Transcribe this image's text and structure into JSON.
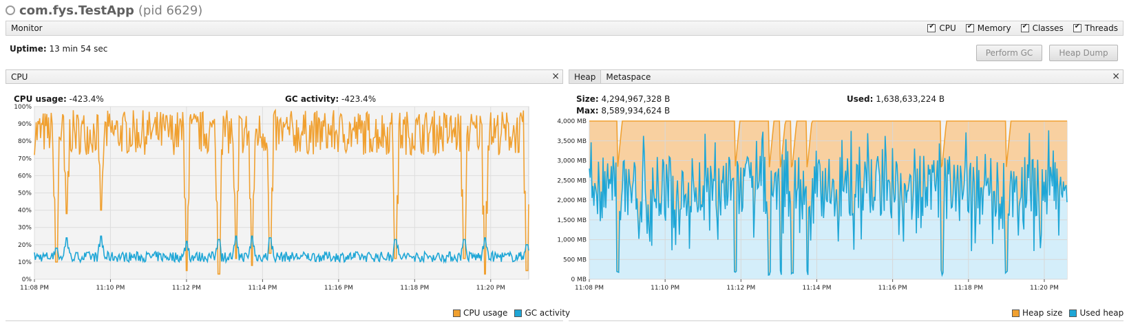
{
  "app": {
    "name": "com.fys.TestApp",
    "pid": "(pid 6629)"
  },
  "monitor": {
    "label": "Monitor",
    "checkboxes": [
      {
        "label": "CPU",
        "checked": true
      },
      {
        "label": "Memory",
        "checked": true
      },
      {
        "label": "Classes",
        "checked": true
      },
      {
        "label": "Threads",
        "checked": true
      }
    ]
  },
  "uptime": {
    "label": "Uptime:",
    "value": "13 min 54 sec"
  },
  "buttons": {
    "perform_gc": "Perform GC",
    "heap_dump": "Heap Dump"
  },
  "cpu_panel": {
    "tab": "CPU",
    "close": "×",
    "cpu_usage_label": "CPU usage:",
    "cpu_usage_value": "-423.4%",
    "gc_activity_label": "GC activity:",
    "gc_activity_value": "-423.4%"
  },
  "memory_panel": {
    "tabs": [
      "Heap",
      "Metaspace"
    ],
    "close": "×",
    "size_label": "Size:",
    "size_value": "4,294,967,328 B",
    "used_label": "Used:",
    "used_value": "1,638,633,224 B",
    "max_label": "Max:",
    "max_value": "8,589,934,624 B"
  },
  "colors": {
    "orange": "#f0a030",
    "blue": "#1ea6d6",
    "orange_fill": "#f8d0a0",
    "blue_fill": "#d4eefa"
  },
  "chart_data": [
    {
      "type": "line",
      "yticks": [
        "0%",
        "10%",
        "20%",
        "30%",
        "40%",
        "50%",
        "60%",
        "70%",
        "80%",
        "90%",
        "100%"
      ],
      "ylim": [
        0,
        100
      ],
      "xticks": [
        "11:08 PM",
        "11:10 PM",
        "11:12 PM",
        "11:14 PM",
        "11:16 PM",
        "11:18 PM",
        "11:20 PM"
      ],
      "xlim": [
        0,
        13.0
      ],
      "xtick_positions": [
        0,
        2,
        4,
        6,
        8,
        10,
        12
      ],
      "grid": true,
      "legend": "bottom-right",
      "series": [
        {
          "name": "CPU usage",
          "color": "#f0a030"
        },
        {
          "name": "GC activity",
          "color": "#1ea6d6"
        }
      ],
      "approx_pattern": {
        "cpu_usage_range": [
          72,
          98
        ],
        "gc_activity_range": [
          10,
          16
        ],
        "drop_times": [
          0.58,
          0.85,
          1.75,
          4.0,
          4.85,
          5.3,
          5.72,
          6.2,
          9.5,
          11.3,
          11.85,
          12.95
        ],
        "drop_cpu_min": [
          10,
          38,
          40,
          5,
          3,
          12,
          8,
          15,
          12,
          12,
          3,
          5
        ],
        "gc_spike_max": [
          18,
          24,
          25,
          22,
          23,
          25,
          25,
          24,
          23,
          23,
          24,
          20
        ]
      }
    },
    {
      "type": "area",
      "yticks": [
        "0 MB",
        "500 MB",
        "1,000 MB",
        "1,500 MB",
        "2,000 MB",
        "2,500 MB",
        "3,000 MB",
        "3,500 MB",
        "4,000 MB"
      ],
      "ylim": [
        0,
        4096
      ],
      "xticks": [
        "11:08 PM",
        "11:10 PM",
        "11:12 PM",
        "11:14 PM",
        "11:16 PM",
        "11:18 PM",
        "11:20 PM"
      ],
      "xlim": [
        0,
        12.6
      ],
      "xtick_positions": [
        0,
        2,
        4,
        6,
        8,
        10,
        12
      ],
      "grid": true,
      "legend": "bottom-right",
      "series": [
        {
          "name": "Heap size",
          "color": "#f0a030",
          "value": 4096
        },
        {
          "name": "Used heap",
          "color": "#1ea6d6"
        }
      ],
      "approx_pattern": {
        "heap_size_mb": 4096,
        "heap_dips": [
          0.75,
          3.85,
          4.75,
          5.05,
          5.35,
          5.75,
          9.3,
          11.0
        ],
        "used_range_mb": [
          1500,
          3200
        ]
      }
    }
  ],
  "legends": {
    "cpu": [
      "CPU usage",
      "GC activity"
    ],
    "heap": [
      "Heap size",
      "Used heap"
    ]
  }
}
